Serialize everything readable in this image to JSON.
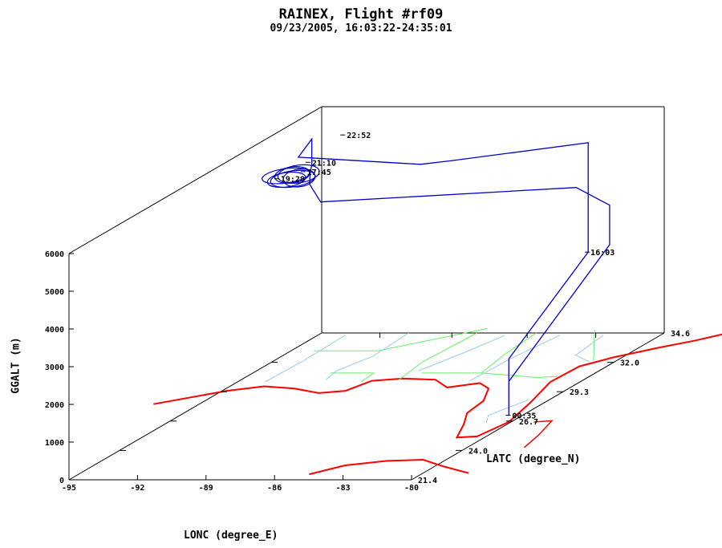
{
  "title": "RAINEX, Flight #rf09",
  "subtitle": "09/23/2005, 16:03:22-24:35:01",
  "colors": {
    "track": "#0000cc",
    "coastline": "#ff0000",
    "rivers": "#99ccee",
    "borders": "#66ee66",
    "axes": "#000000"
  },
  "chart_data": {
    "type": "line",
    "title": "RAINEX, Flight #rf09",
    "subtitle": "09/23/2005, 16:03:22-24:35:01",
    "xlabel": "LONC (degree_E)",
    "ylabel": "GGALT (m)",
    "zlabel": "LATC (degree_N)",
    "xlim": [
      -95,
      -80
    ],
    "zlim": [
      21.4,
      34.6
    ],
    "ylim": [
      0,
      6000
    ],
    "x_ticks": [
      "-95",
      "-92",
      "-89",
      "-86",
      "-83",
      "-80"
    ],
    "y_ticks": [
      "0",
      "1000",
      "2000",
      "3000",
      "4000",
      "5000",
      "6000"
    ],
    "z_ticks": [
      "21.4",
      "24.0",
      "26.7",
      "29.3",
      "32.0",
      "34.6"
    ],
    "time_labels": [
      "16:03",
      "00:35",
      "22:52",
      "21:10",
      "17:45",
      "19:28"
    ],
    "series": [
      {
        "values": [
          {
            "lon": -80.6,
            "lat": 27.2,
            "alt": 0,
            "time": "00:35"
          },
          {
            "lon": -80.6,
            "lat": 27.2,
            "alt": 1500
          },
          {
            "lon": -80.9,
            "lat": 31.7,
            "alt": 3000,
            "time": "16:03"
          },
          {
            "lon": -80.9,
            "lat": 31.7,
            "alt": 5900
          },
          {
            "lon": -85.5,
            "lat": 30.1,
            "alt": 5900
          },
          {
            "lon": -86.9,
            "lat": 30.1,
            "alt": 5800
          },
          {
            "lon": -92.5,
            "lat": 30.4,
            "alt": 5900
          },
          {
            "lon": -93.0,
            "lat": 31.7,
            "alt": 6000
          },
          {
            "lon": -93.0,
            "lat": 31.7,
            "alt": 5300
          },
          {
            "lon": -92.9,
            "lat": 31.5,
            "alt": 5200
          },
          {
            "lon": -93.1,
            "lat": 31.7,
            "alt": 4800
          },
          {
            "lon": -92.7,
            "lat": 31.8,
            "alt": 4300
          },
          {
            "lon": -82.6,
            "lat": 33.1,
            "alt": 4300
          },
          {
            "lon": -80.8,
            "lat": 32.7,
            "alt": 3950
          },
          {
            "lon": -80.8,
            "lat": 32.7,
            "alt": 2900
          },
          {
            "lon": -80.6,
            "lat": 27.2,
            "alt": 900
          },
          {
            "lon": -80.6,
            "lat": 27.2,
            "alt": 0
          }
        ]
      }
    ],
    "grid": false
  }
}
